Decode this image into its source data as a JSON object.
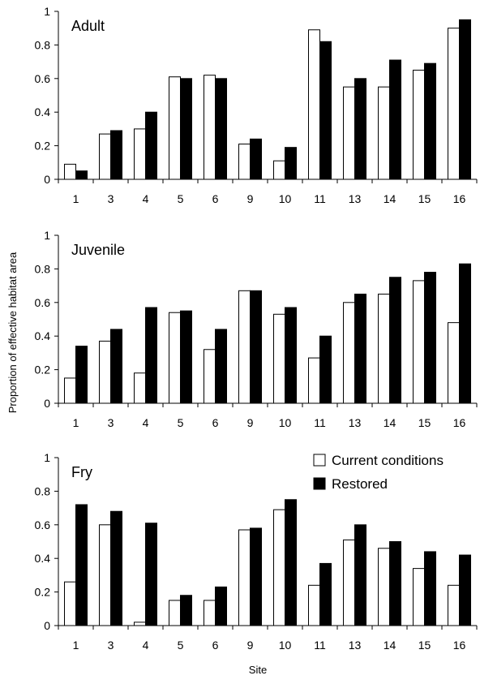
{
  "figure": {
    "ylabel": "Proportion of effective habitat area",
    "xlabel": "Site"
  },
  "legend": {
    "current_label": "Current conditions",
    "restored_label": "Restored"
  },
  "colors": {
    "current": "#ffffff",
    "restored": "#000000",
    "stroke": "#000000"
  },
  "chart_data": [
    {
      "type": "bar",
      "title": "Adult",
      "categories": [
        "1",
        "3",
        "4",
        "5",
        "6",
        "9",
        "10",
        "11",
        "13",
        "14",
        "15",
        "16"
      ],
      "ylim": [
        0,
        1
      ],
      "yticks": [
        "0",
        "0.2",
        "0.4",
        "0.6",
        "0.8",
        "1"
      ],
      "series": [
        {
          "name": "Current conditions",
          "values": [
            0.09,
            0.27,
            0.3,
            0.61,
            0.62,
            0.21,
            0.11,
            0.89,
            0.55,
            0.55,
            0.65,
            0.9
          ]
        },
        {
          "name": "Restored",
          "values": [
            0.05,
            0.29,
            0.4,
            0.6,
            0.6,
            0.24,
            0.19,
            0.82,
            0.6,
            0.71,
            0.69,
            0.95
          ]
        }
      ]
    },
    {
      "type": "bar",
      "title": "Juvenile",
      "categories": [
        "1",
        "3",
        "4",
        "5",
        "6",
        "9",
        "10",
        "11",
        "13",
        "14",
        "15",
        "16"
      ],
      "ylim": [
        0,
        1
      ],
      "yticks": [
        "0",
        "0.2",
        "0.4",
        "0.6",
        "0.8",
        "1"
      ],
      "series": [
        {
          "name": "Current conditions",
          "values": [
            0.15,
            0.37,
            0.18,
            0.54,
            0.32,
            0.67,
            0.53,
            0.27,
            0.6,
            0.65,
            0.73,
            0.48
          ]
        },
        {
          "name": "Restored",
          "values": [
            0.34,
            0.44,
            0.57,
            0.55,
            0.44,
            0.67,
            0.57,
            0.4,
            0.65,
            0.75,
            0.78,
            0.83
          ]
        }
      ]
    },
    {
      "type": "bar",
      "title": "Fry",
      "categories": [
        "1",
        "3",
        "4",
        "5",
        "6",
        "9",
        "10",
        "11",
        "13",
        "14",
        "15",
        "16"
      ],
      "ylim": [
        0,
        1
      ],
      "yticks": [
        "0",
        "0.2",
        "0.4",
        "0.6",
        "0.8",
        "1"
      ],
      "legend_position": "top-right",
      "series": [
        {
          "name": "Current conditions",
          "values": [
            0.26,
            0.6,
            0.02,
            0.15,
            0.15,
            0.57,
            0.69,
            0.24,
            0.51,
            0.46,
            0.34,
            0.24
          ]
        },
        {
          "name": "Restored",
          "values": [
            0.72,
            0.68,
            0.61,
            0.18,
            0.23,
            0.58,
            0.75,
            0.37,
            0.6,
            0.5,
            0.44,
            0.42
          ]
        }
      ]
    }
  ]
}
